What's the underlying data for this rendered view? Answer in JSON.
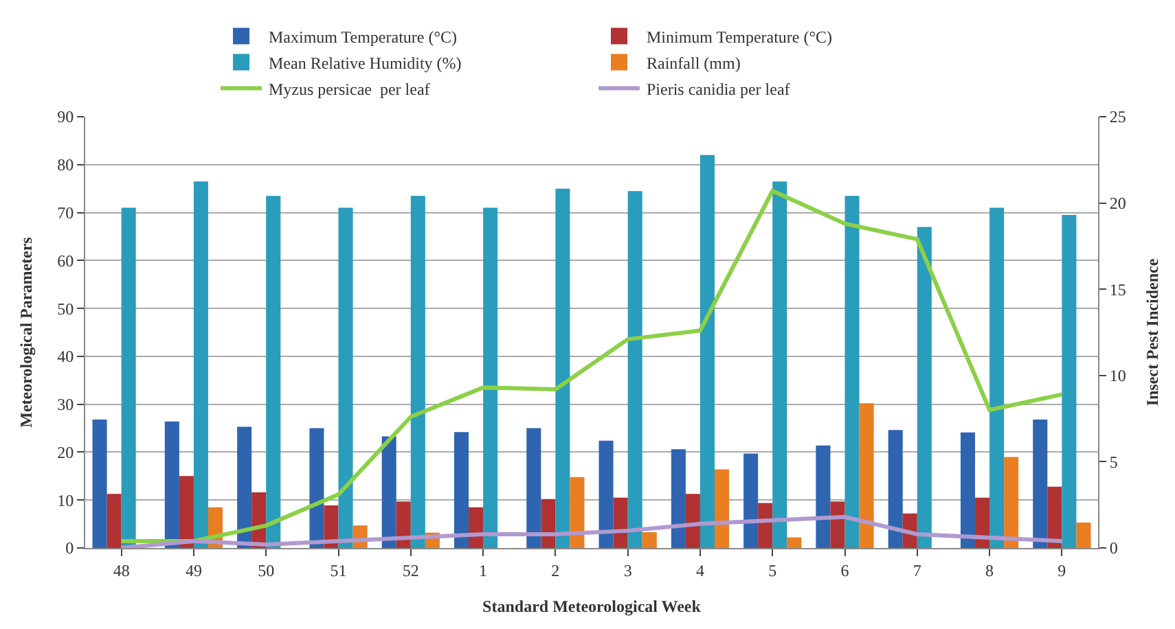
{
  "chart_data": {
    "type": "bar",
    "categories": [
      "48",
      "49",
      "50",
      "51",
      "52",
      "1",
      "2",
      "3",
      "4",
      "5",
      "6",
      "7",
      "8",
      "9"
    ],
    "xlabel": "Standard Meteorological Week",
    "ylabel": "Meteorological Parameters",
    "y2label": "Insect Pest Incidence",
    "series": [
      {
        "name": "Maximum Temperature (°C)",
        "color": "#2e64b0",
        "values": [
          26.8,
          26.4,
          25.3,
          25.0,
          23.3,
          24.2,
          25.0,
          22.4,
          20.6,
          19.7,
          21.4,
          24.6,
          24.1,
          26.8
        ]
      },
      {
        "name": "Minimum Temperature (°C)",
        "color": "#b03232",
        "values": [
          11.3,
          15.0,
          11.6,
          8.9,
          9.7,
          8.5,
          10.2,
          10.5,
          11.3,
          9.4,
          9.7,
          7.2,
          10.5,
          12.8
        ]
      },
      {
        "name": "Mean Relative Humidity (%)",
        "color": "#2a9cbc",
        "values": [
          71,
          76.5,
          73.5,
          71,
          73.5,
          71,
          75,
          74.5,
          82,
          76.5,
          73.5,
          67,
          71,
          69.5
        ]
      },
      {
        "name": "Rainfall (mm)",
        "color": "#ea7e22",
        "values": [
          0,
          8.5,
          0,
          4.7,
          3.2,
          0,
          14.8,
          3.3,
          16.4,
          2.2,
          30.2,
          0,
          19.0,
          5.3
        ]
      },
      {
        "name": "Myzus persicae  per leaf",
        "type": "line",
        "axis": "y2",
        "color": "#8cd048",
        "values": [
          0.4,
          0.4,
          1.3,
          3.1,
          7.6,
          9.3,
          9.2,
          12.1,
          12.6,
          20.7,
          18.8,
          17.9,
          8.0,
          8.9
        ]
      },
      {
        "name": "Pieris canidia per leaf",
        "type": "line",
        "axis": "y2",
        "color": "#b09ad0",
        "values": [
          0.0,
          0.4,
          0.2,
          0.4,
          0.6,
          0.8,
          0.8,
          1.0,
          1.4,
          1.6,
          1.8,
          0.8,
          0.6,
          0.4
        ]
      }
    ],
    "ylim": [
      0,
      90
    ],
    "yticks": [
      0,
      10,
      20,
      30,
      40,
      50,
      60,
      70,
      80,
      90
    ],
    "y2lim": [
      0,
      25
    ],
    "y2ticks": [
      0,
      5,
      10,
      15,
      20,
      25
    ],
    "grid": "y",
    "legend": "top"
  }
}
